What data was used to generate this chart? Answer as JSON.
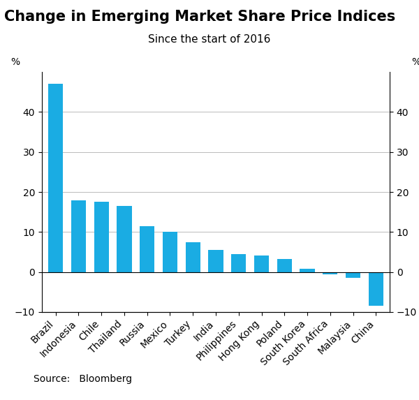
{
  "title": "Change in Emerging Market Share Price Indices",
  "subtitle": "Since the start of 2016",
  "source": "Source:   Bloomberg",
  "categories": [
    "Brazil",
    "Indonesia",
    "Chile",
    "Thailand",
    "Russia",
    "Mexico",
    "Turkey",
    "India",
    "Philippines",
    "Hong Kong",
    "Poland",
    "South Korea",
    "South Africa",
    "Malaysia",
    "China"
  ],
  "values": [
    47.0,
    18.0,
    17.5,
    16.5,
    11.5,
    10.0,
    7.5,
    5.5,
    4.5,
    4.2,
    3.2,
    0.8,
    -0.5,
    -1.5,
    -8.5
  ],
  "bar_color": "#1aace3",
  "ylim": [
    -10,
    50
  ],
  "yticks": [
    -10,
    0,
    10,
    20,
    30,
    40
  ],
  "ylabel_left": "%",
  "ylabel_right": "%",
  "background_color": "#ffffff",
  "grid_color": "#bbbbbb",
  "title_fontsize": 15,
  "subtitle_fontsize": 11,
  "tick_fontsize": 10,
  "source_fontsize": 10
}
